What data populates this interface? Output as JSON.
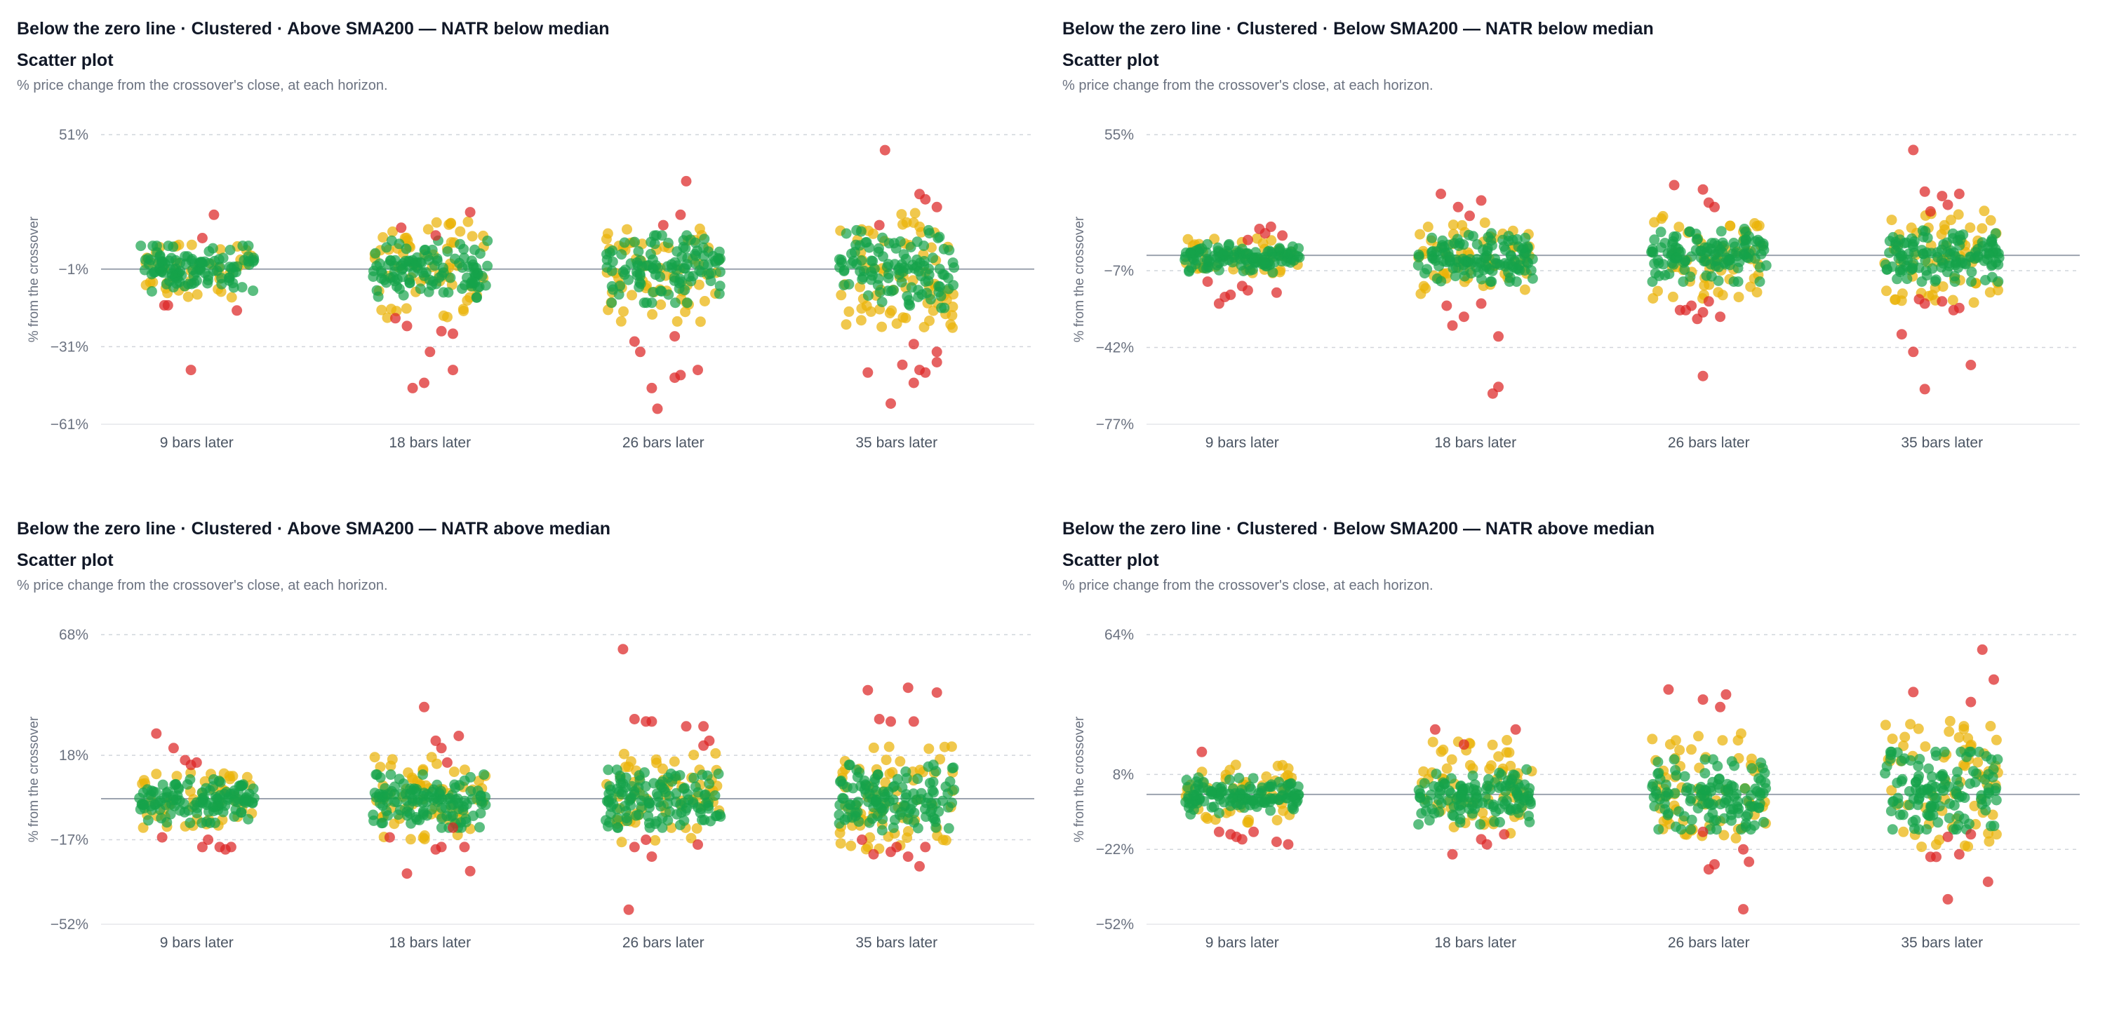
{
  "colors": {
    "green": "#16a34a",
    "yellow": "#eab308",
    "red": "#dc2626",
    "zero_line": "#9ca3af",
    "grid": "#d1d5db"
  },
  "chart_data": [
    {
      "type": "scatter",
      "title": "Below the zero line · Clustered · Above SMA200 — NATR below median",
      "subtitle": "Scatter plot",
      "description": "% price change from the crossover's close, at each horizon.",
      "ylabel": "% from the crossover",
      "ylim": [
        -61,
        51
      ],
      "yticks": [
        51,
        -1,
        -31,
        -61
      ],
      "ytick_labels": [
        "51%",
        "−1%",
        "−31%",
        "−61%"
      ],
      "zero_value": -1,
      "categories": [
        "9 bars later",
        "18 bars later",
        "26 bars later",
        "35 bars later"
      ],
      "series": [
        {
          "category": "9 bars later",
          "green_band": [
            -8,
            6
          ],
          "yellow_band": [
            -12,
            9
          ],
          "green_count": 110,
          "yellow_count": 40,
          "red_points": [
            [
              -0.25,
              -15
            ],
            [
              -0.28,
              -15
            ],
            [
              0.15,
              20
            ],
            [
              0.05,
              11
            ],
            [
              0.35,
              -17
            ],
            [
              -0.05,
              -40
            ]
          ]
        },
        {
          "category": "18 bars later",
          "green_band": [
            -10,
            8
          ],
          "yellow_band": [
            -20,
            18
          ],
          "green_count": 110,
          "yellow_count": 60,
          "red_points": [
            [
              -0.3,
              -20
            ],
            [
              -0.2,
              -23
            ],
            [
              0.1,
              -25
            ],
            [
              0.2,
              -26
            ],
            [
              0.0,
              -33
            ],
            [
              -0.15,
              -47
            ],
            [
              -0.05,
              -45
            ],
            [
              0.2,
              -40
            ],
            [
              0.35,
              21
            ],
            [
              -0.25,
              15
            ],
            [
              0.05,
              12
            ]
          ]
        },
        {
          "category": "26 bars later",
          "green_band": [
            -12,
            10
          ],
          "yellow_band": [
            -22,
            15
          ],
          "green_count": 110,
          "yellow_count": 60,
          "red_points": [
            [
              0.2,
              33
            ],
            [
              0.15,
              20
            ],
            [
              0.0,
              16
            ],
            [
              -0.25,
              -29
            ],
            [
              -0.2,
              -33
            ],
            [
              -0.1,
              -47
            ],
            [
              0.15,
              -42
            ],
            [
              0.3,
              -40
            ],
            [
              0.1,
              -43
            ],
            [
              -0.05,
              -55
            ],
            [
              0.1,
              -27
            ]
          ]
        },
        {
          "category": "35 bars later",
          "green_band": [
            -14,
            12
          ],
          "yellow_band": [
            -24,
            22
          ],
          "green_count": 110,
          "yellow_count": 70,
          "red_points": [
            [
              -0.1,
              45
            ],
            [
              0.2,
              28
            ],
            [
              0.25,
              26
            ],
            [
              0.35,
              23
            ],
            [
              -0.15,
              16
            ],
            [
              0.15,
              -30
            ],
            [
              0.35,
              -33
            ],
            [
              0.35,
              -37
            ],
            [
              0.2,
              -40
            ],
            [
              0.25,
              -41
            ],
            [
              0.15,
              -45
            ],
            [
              -0.25,
              -41
            ],
            [
              -0.05,
              -53
            ],
            [
              0.05,
              -38
            ]
          ]
        }
      ]
    },
    {
      "type": "scatter",
      "title": "Below the zero line · Clustered · Below SMA200 — NATR below median",
      "subtitle": "Scatter plot",
      "description": "% price change from the crossover's close, at each horizon.",
      "ylabel": "% from the crossover",
      "ylim": [
        -77,
        55
      ],
      "yticks": [
        55,
        -7,
        -42,
        -77
      ],
      "ytick_labels": [
        "55%",
        "−7%",
        "−42%",
        "−77%"
      ],
      "zero_value": 0,
      "categories": [
        "9 bars later",
        "18 bars later",
        "26 bars later",
        "35 bars later"
      ],
      "series": [
        {
          "category": "9 bars later",
          "green_band": [
            -6,
            3
          ],
          "yellow_band": [
            -9,
            8
          ],
          "green_count": 120,
          "yellow_count": 40,
          "red_points": [
            [
              -0.3,
              -12
            ],
            [
              -0.2,
              -22
            ],
            [
              -0.15,
              -19
            ],
            [
              -0.1,
              -18
            ],
            [
              0.0,
              -14
            ],
            [
              0.05,
              -16
            ],
            [
              0.3,
              -17
            ],
            [
              0.2,
              10
            ],
            [
              0.25,
              13
            ],
            [
              0.15,
              12
            ],
            [
              0.05,
              7
            ],
            [
              0.35,
              9
            ]
          ]
        },
        {
          "category": "18 bars later",
          "green_band": [
            -10,
            8
          ],
          "yellow_band": [
            -18,
            15
          ],
          "green_count": 120,
          "yellow_count": 55,
          "red_points": [
            [
              -0.3,
              28
            ],
            [
              -0.05,
              18
            ],
            [
              -0.15,
              22
            ],
            [
              0.05,
              25
            ],
            [
              0.2,
              -37
            ],
            [
              0.15,
              -63
            ],
            [
              0.2,
              -60
            ],
            [
              -0.25,
              -23
            ],
            [
              -0.1,
              -28
            ],
            [
              -0.2,
              -32
            ],
            [
              0.05,
              -22
            ]
          ]
        },
        {
          "category": "26 bars later",
          "green_band": [
            -10,
            10
          ],
          "yellow_band": [
            -20,
            20
          ],
          "green_count": 120,
          "yellow_count": 55,
          "red_points": [
            [
              -0.3,
              32
            ],
            [
              -0.05,
              30
            ],
            [
              0.0,
              24
            ],
            [
              0.05,
              22
            ],
            [
              -0.15,
              -23
            ],
            [
              -0.05,
              -26
            ],
            [
              0.0,
              -21
            ],
            [
              0.1,
              -28
            ],
            [
              -0.1,
              -29
            ],
            [
              -0.2,
              -25
            ],
            [
              -0.25,
              -25
            ],
            [
              -0.05,
              -55
            ]
          ]
        },
        {
          "category": "35 bars later",
          "green_band": [
            -10,
            10
          ],
          "yellow_band": [
            -22,
            22
          ],
          "green_count": 120,
          "yellow_count": 60,
          "red_points": [
            [
              -0.25,
              48
            ],
            [
              -0.1,
              20
            ],
            [
              0.0,
              27
            ],
            [
              0.15,
              28
            ],
            [
              0.05,
              23
            ],
            [
              -0.15,
              29
            ],
            [
              -0.2,
              -20
            ],
            [
              -0.15,
              -22
            ],
            [
              0.1,
              -25
            ],
            [
              0.15,
              -24
            ],
            [
              0.0,
              -21
            ],
            [
              -0.35,
              -36
            ],
            [
              -0.25,
              -44
            ],
            [
              0.25,
              -50
            ],
            [
              -0.15,
              -61
            ]
          ]
        }
      ]
    },
    {
      "type": "scatter",
      "title": "Below the zero line · Clustered · Above SMA200 — NATR above median",
      "subtitle": "Scatter plot",
      "description": "% price change from the crossover's close, at each horizon.",
      "ylabel": "% from the crossover",
      "ylim": [
        -52,
        68
      ],
      "yticks": [
        68,
        18,
        -17,
        -52
      ],
      "ytick_labels": [
        "68%",
        "18%",
        "−17%",
        "−52%"
      ],
      "zero_value": 0,
      "categories": [
        "9 bars later",
        "18 bars later",
        "26 bars later",
        "35 bars later"
      ],
      "series": [
        {
          "category": "9 bars later",
          "green_band": [
            -8,
            6
          ],
          "yellow_band": [
            -12,
            11
          ],
          "green_count": 120,
          "yellow_count": 45,
          "red_points": [
            [
              -0.35,
              27
            ],
            [
              -0.2,
              21
            ],
            [
              -0.1,
              16
            ],
            [
              0.0,
              15
            ],
            [
              -0.05,
              14
            ],
            [
              -0.3,
              -16
            ],
            [
              0.1,
              -17
            ],
            [
              0.05,
              -20
            ],
            [
              0.25,
              -21
            ],
            [
              0.3,
              -20
            ],
            [
              0.2,
              -20
            ]
          ]
        },
        {
          "category": "18 bars later",
          "green_band": [
            -10,
            8
          ],
          "yellow_band": [
            -18,
            18
          ],
          "green_count": 120,
          "yellow_count": 60,
          "red_points": [
            [
              -0.05,
              38
            ],
            [
              0.05,
              24
            ],
            [
              0.1,
              21
            ],
            [
              0.25,
              26
            ],
            [
              0.15,
              15
            ],
            [
              -0.35,
              -16
            ],
            [
              -0.2,
              -31
            ],
            [
              0.05,
              -21
            ],
            [
              0.1,
              -20
            ],
            [
              0.3,
              -20
            ],
            [
              0.35,
              -30
            ],
            [
              0.2,
              -12
            ]
          ]
        },
        {
          "category": "26 bars later",
          "green_band": [
            -10,
            10
          ],
          "yellow_band": [
            -18,
            20
          ],
          "green_count": 120,
          "yellow_count": 65,
          "red_points": [
            [
              -0.35,
              62
            ],
            [
              -0.25,
              33
            ],
            [
              -0.15,
              32
            ],
            [
              -0.1,
              32
            ],
            [
              0.2,
              30
            ],
            [
              0.35,
              30
            ],
            [
              0.4,
              24
            ],
            [
              0.35,
              22
            ],
            [
              -0.15,
              -17
            ],
            [
              -0.25,
              -20
            ],
            [
              -0.1,
              -24
            ],
            [
              -0.3,
              -46
            ],
            [
              0.3,
              -19
            ]
          ]
        },
        {
          "category": "35 bars later",
          "green_band": [
            -12,
            12
          ],
          "yellow_band": [
            -22,
            22
          ],
          "green_count": 120,
          "yellow_count": 70,
          "red_points": [
            [
              -0.25,
              45
            ],
            [
              0.1,
              46
            ],
            [
              0.35,
              44
            ],
            [
              -0.15,
              33
            ],
            [
              -0.05,
              32
            ],
            [
              0.15,
              32
            ],
            [
              -0.3,
              -17
            ],
            [
              -0.2,
              -23
            ],
            [
              -0.05,
              -22
            ],
            [
              0.0,
              -20
            ],
            [
              0.1,
              -24
            ],
            [
              0.2,
              -28
            ],
            [
              0.25,
              -20
            ]
          ]
        }
      ]
    },
    {
      "type": "scatter",
      "title": "Below the zero line · Clustered · Below SMA200 — NATR above median",
      "subtitle": "Scatter plot",
      "description": "% price change from the crossover's close, at each horizon.",
      "ylabel": "% from the crossover",
      "ylim": [
        -52,
        64
      ],
      "yticks": [
        64,
        8,
        -22,
        -52
      ],
      "ytick_labels": [
        "64%",
        "8%",
        "−22%",
        "−52%"
      ],
      "zero_value": 0,
      "categories": [
        "9 bars later",
        "18 bars later",
        "26 bars later",
        "35 bars later"
      ],
      "series": [
        {
          "category": "9 bars later",
          "green_band": [
            -6,
            5
          ],
          "yellow_band": [
            -12,
            12
          ],
          "green_count": 120,
          "yellow_count": 45,
          "red_points": [
            [
              -0.35,
              17
            ],
            [
              -0.1,
              -16
            ],
            [
              -0.05,
              -17
            ],
            [
              0.0,
              -18
            ],
            [
              0.1,
              -15
            ],
            [
              0.3,
              -19
            ],
            [
              0.4,
              -20
            ],
            [
              -0.2,
              -15
            ]
          ]
        },
        {
          "category": "18 bars later",
          "green_band": [
            -10,
            8
          ],
          "yellow_band": [
            -16,
            22
          ],
          "green_count": 120,
          "yellow_count": 60,
          "red_points": [
            [
              -0.35,
              26
            ],
            [
              -0.1,
              20
            ],
            [
              0.35,
              26
            ],
            [
              -0.2,
              -24
            ],
            [
              0.1,
              -20
            ],
            [
              0.05,
              -18
            ],
            [
              0.25,
              -16
            ]
          ]
        },
        {
          "category": "26 bars later",
          "green_band": [
            -12,
            12
          ],
          "yellow_band": [
            -18,
            25
          ],
          "green_count": 120,
          "yellow_count": 60,
          "red_points": [
            [
              -0.35,
              42
            ],
            [
              -0.05,
              38
            ],
            [
              0.1,
              35
            ],
            [
              0.15,
              40
            ],
            [
              0.05,
              -28
            ],
            [
              0.0,
              -30
            ],
            [
              0.3,
              -22
            ],
            [
              0.35,
              -27
            ],
            [
              0.3,
              -46
            ],
            [
              -0.05,
              -15
            ]
          ]
        },
        {
          "category": "35 bars later",
          "green_band": [
            -12,
            15
          ],
          "yellow_band": [
            -22,
            30
          ],
          "green_count": 120,
          "yellow_count": 65,
          "red_points": [
            [
              0.35,
              58
            ],
            [
              0.45,
              46
            ],
            [
              -0.25,
              41
            ],
            [
              0.25,
              37
            ],
            [
              -0.1,
              -25
            ],
            [
              -0.05,
              -25
            ],
            [
              0.05,
              -17
            ],
            [
              0.25,
              -16
            ],
            [
              0.15,
              -24
            ],
            [
              0.4,
              -35
            ],
            [
              0.05,
              -42
            ]
          ]
        }
      ]
    }
  ]
}
